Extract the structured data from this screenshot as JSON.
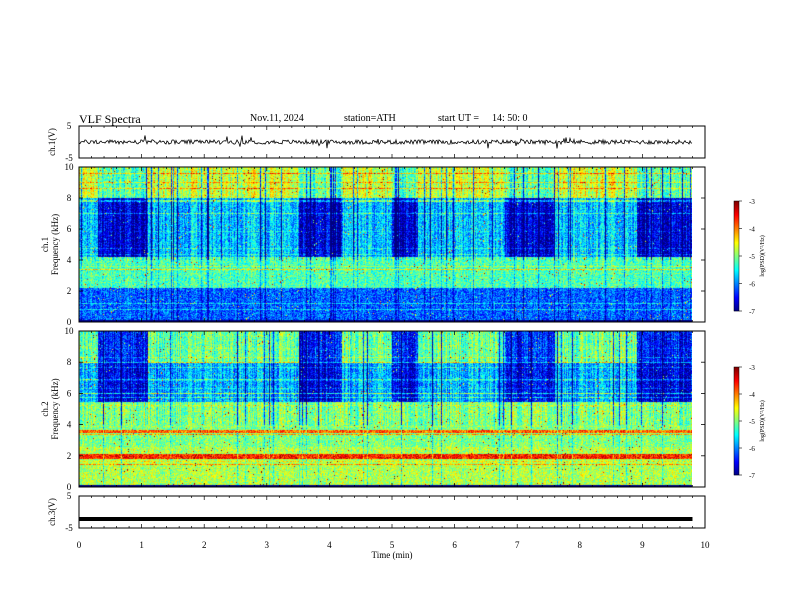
{
  "header": {
    "title": "VLF  Spectra",
    "date": "Nov.11, 2024",
    "station": "station=ATH",
    "start_ut_label": "start  UT  =",
    "start_ut_value": "14: 50: 0"
  },
  "chart_data": [
    {
      "type": "line",
      "panel": "ch1-waveform",
      "ylabel": "ch.1(V)",
      "ylim": [
        -5,
        5
      ],
      "yticks": [
        "5",
        "-5"
      ],
      "xlim": [
        0,
        10
      ],
      "trace_color": "#000000",
      "trace_level": 0,
      "trace_range": [
        -1.5,
        1.5
      ],
      "trace_end_min": 9.8
    },
    {
      "type": "heatmap",
      "panel": "ch1-spectrogram",
      "ylabel": "ch.1\nFrequency  (kHz)",
      "ylim": [
        0,
        10
      ],
      "yticks": [
        "0",
        "2",
        "4",
        "6",
        "8",
        "10"
      ],
      "xlim": [
        0,
        10
      ],
      "data_end_min": 9.8,
      "colorbar": {
        "label": "log(PSD)(V²/Hz)",
        "range": [
          -7,
          -3
        ],
        "ticks": [
          "-3",
          "-4",
          "-5",
          "-6",
          "-7"
        ]
      },
      "quiet_intervals_min": [
        [
          0.3,
          1.1
        ],
        [
          3.5,
          4.2
        ],
        [
          5.0,
          5.4
        ],
        [
          6.8,
          7.6
        ],
        [
          8.9,
          9.8
        ]
      ]
    },
    {
      "type": "heatmap",
      "panel": "ch2-spectrogram",
      "ylabel": "ch.2\nFrequency  (kHz)",
      "ylim": [
        0,
        10
      ],
      "yticks": [
        "0",
        "2",
        "4",
        "6",
        "8",
        "10"
      ],
      "xlim": [
        0,
        10
      ],
      "data_end_min": 9.8,
      "colorbar": {
        "label": "log(PSD)(V²/Hz)",
        "range": [
          -7,
          -3
        ],
        "ticks": [
          "-3",
          "-4",
          "-5",
          "-6",
          "-7"
        ]
      },
      "quiet_intervals_min": [
        [
          0.3,
          1.1
        ],
        [
          3.5,
          4.2
        ],
        [
          5.0,
          5.4
        ],
        [
          6.8,
          7.6
        ],
        [
          8.9,
          9.8
        ]
      ]
    },
    {
      "type": "line",
      "panel": "ch3-waveform",
      "ylabel": "ch.3(V)",
      "ylim": [
        -5,
        5
      ],
      "yticks": [
        "5",
        "-5"
      ],
      "xlim": [
        0,
        10
      ],
      "xlabel": "Time  (min)",
      "xticks": [
        "0",
        "1",
        "2",
        "3",
        "4",
        "5",
        "6",
        "7",
        "8",
        "9",
        "10"
      ],
      "trace_color": "#000000",
      "trace_level": -2.2,
      "trace_end_min": 9.8
    }
  ]
}
